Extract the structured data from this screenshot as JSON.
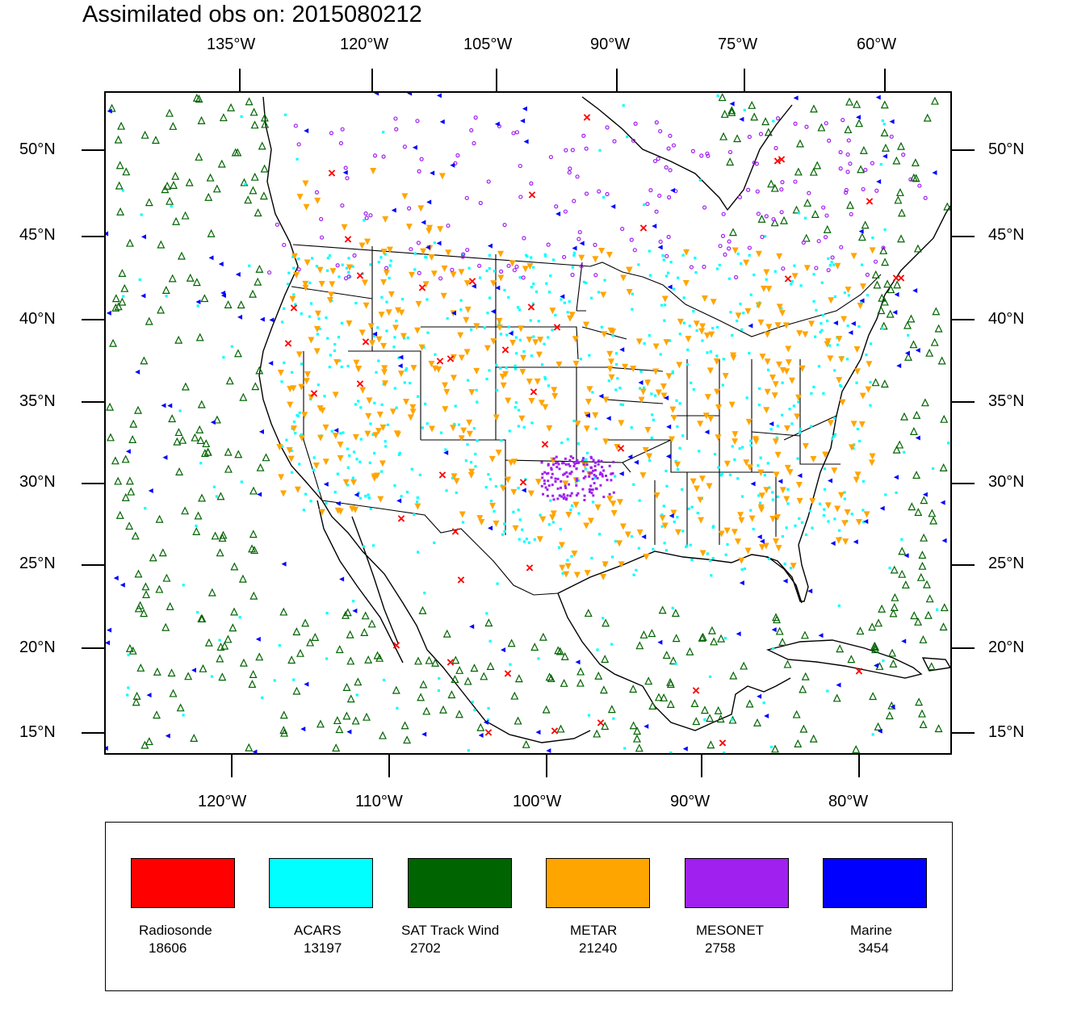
{
  "title": "Assimilated obs on: 2015080212",
  "top_lon_labels": [
    "135°W",
    "120°W",
    "105°W",
    "90°W",
    "75°W",
    "60°W"
  ],
  "bottom_lon_labels": [
    "120°W",
    "110°W",
    "100°W",
    "90°W",
    "80°W"
  ],
  "lat_labels": [
    "50°N",
    "45°N",
    "40°N",
    "35°N",
    "30°N",
    "25°N",
    "20°N",
    "15°N"
  ],
  "legend": [
    {
      "label": "Radiosonde",
      "count": "18606",
      "color": "#ff0000"
    },
    {
      "label": "ACARS",
      "count": "13197",
      "color": "#00ffff"
    },
    {
      "label": "SAT Track Wind",
      "count": "2702",
      "color": "#006400"
    },
    {
      "label": "METAR",
      "count": "21240",
      "color": "#ffa500"
    },
    {
      "label": "MESONET",
      "count": "2758",
      "color": "#a020f0"
    },
    {
      "label": "Marine",
      "count": "3454",
      "color": "#0000ff"
    }
  ],
  "marker_colors": {
    "radiosonde": "#ff0000",
    "acars": "#00ffff",
    "sat_track_wind": "#006400",
    "metar": "#ffa500",
    "mesonet": "#a020f0",
    "marine": "#0000ff"
  }
}
